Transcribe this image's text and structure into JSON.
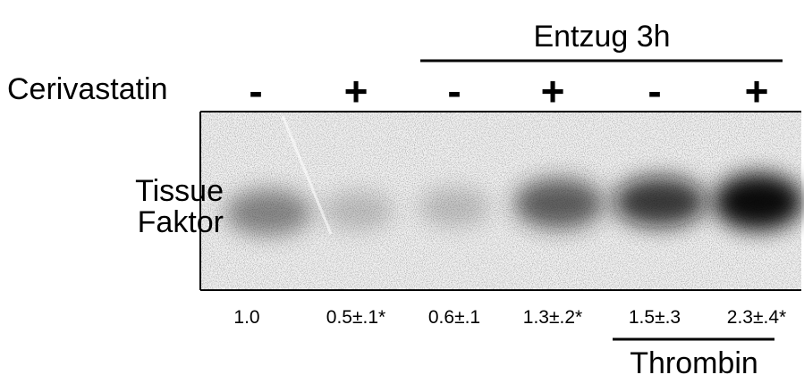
{
  "header": {
    "title": "Entzug 3h"
  },
  "treatment": {
    "label": "Cerivastatin",
    "lanes": [
      "-",
      "+",
      "-",
      "+",
      "-",
      "+"
    ]
  },
  "band_label": {
    "lines": [
      "Tissue",
      "Faktor"
    ]
  },
  "quantification": [
    "1.0",
    "0.5±.1*",
    "0.6±.1",
    "1.3±.2*",
    "1.5±.3",
    "2.3±.4*"
  ],
  "footer": {
    "label": "Thrombin"
  }
}
